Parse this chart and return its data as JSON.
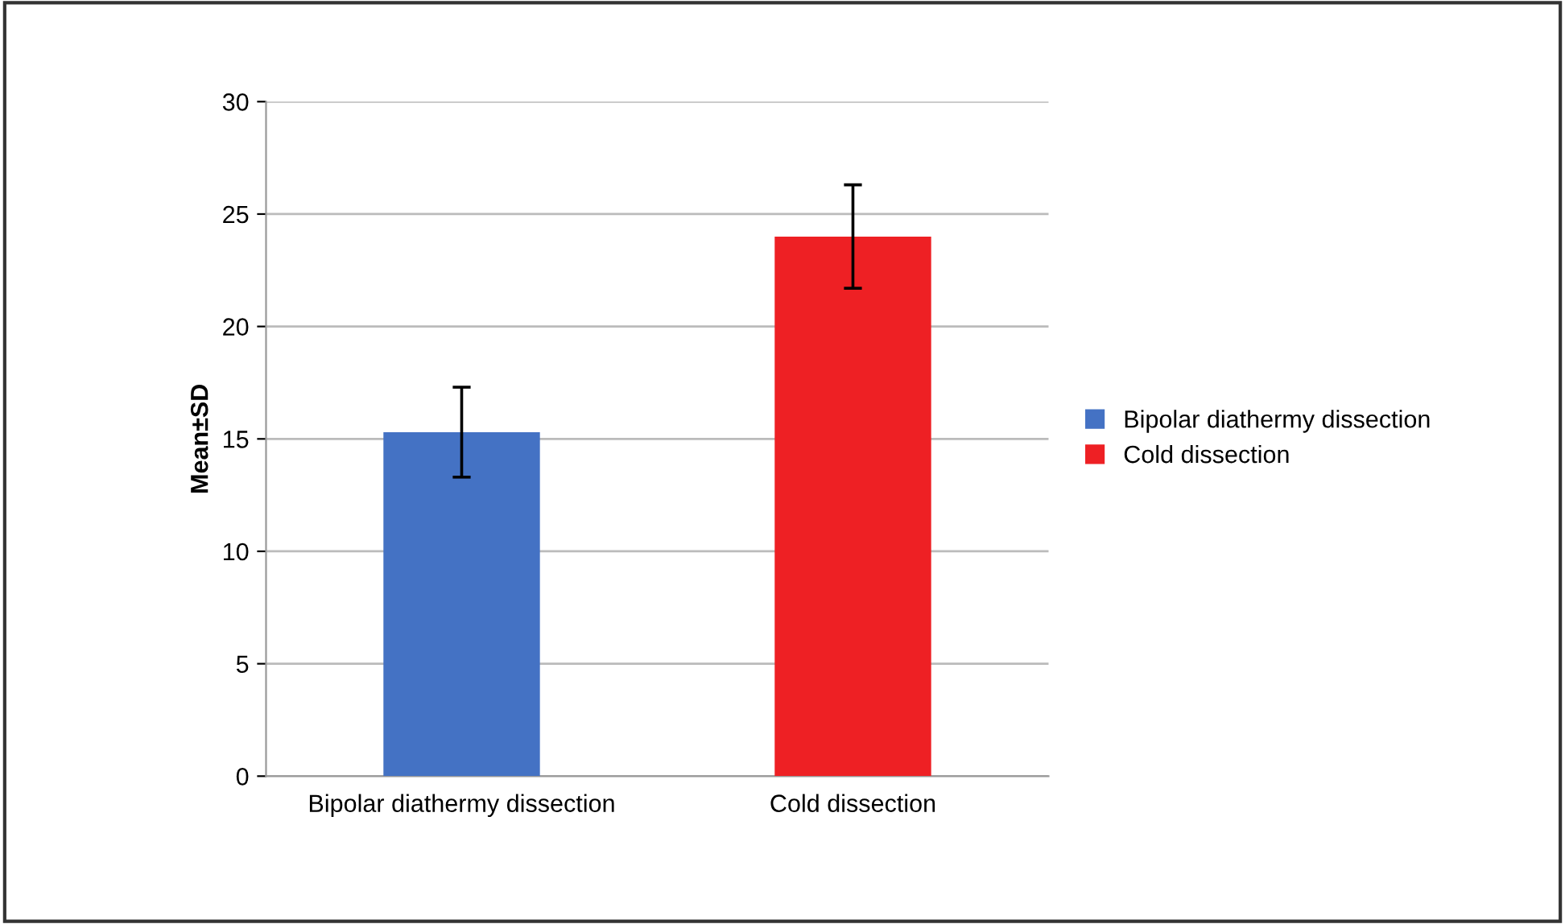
{
  "chart_data": {
    "type": "bar",
    "ylabel": "Mean±SD",
    "categories": [
      "Bipolar diathermy dissection",
      "Cold dissection"
    ],
    "series": [
      {
        "name": "Bipolar diathermy dissection",
        "color": "#4472c4",
        "values": [
          15.3,
          null
        ],
        "errors": [
          2.0,
          null
        ]
      },
      {
        "name": "Cold dissection",
        "color": "#ee2024",
        "values": [
          null,
          24.0
        ],
        "errors": [
          null,
          2.3
        ]
      }
    ],
    "ylim": [
      0,
      30
    ],
    "yticks": [
      0,
      5,
      10,
      15,
      20,
      25,
      30
    ],
    "grid": "y",
    "legend": "right"
  }
}
